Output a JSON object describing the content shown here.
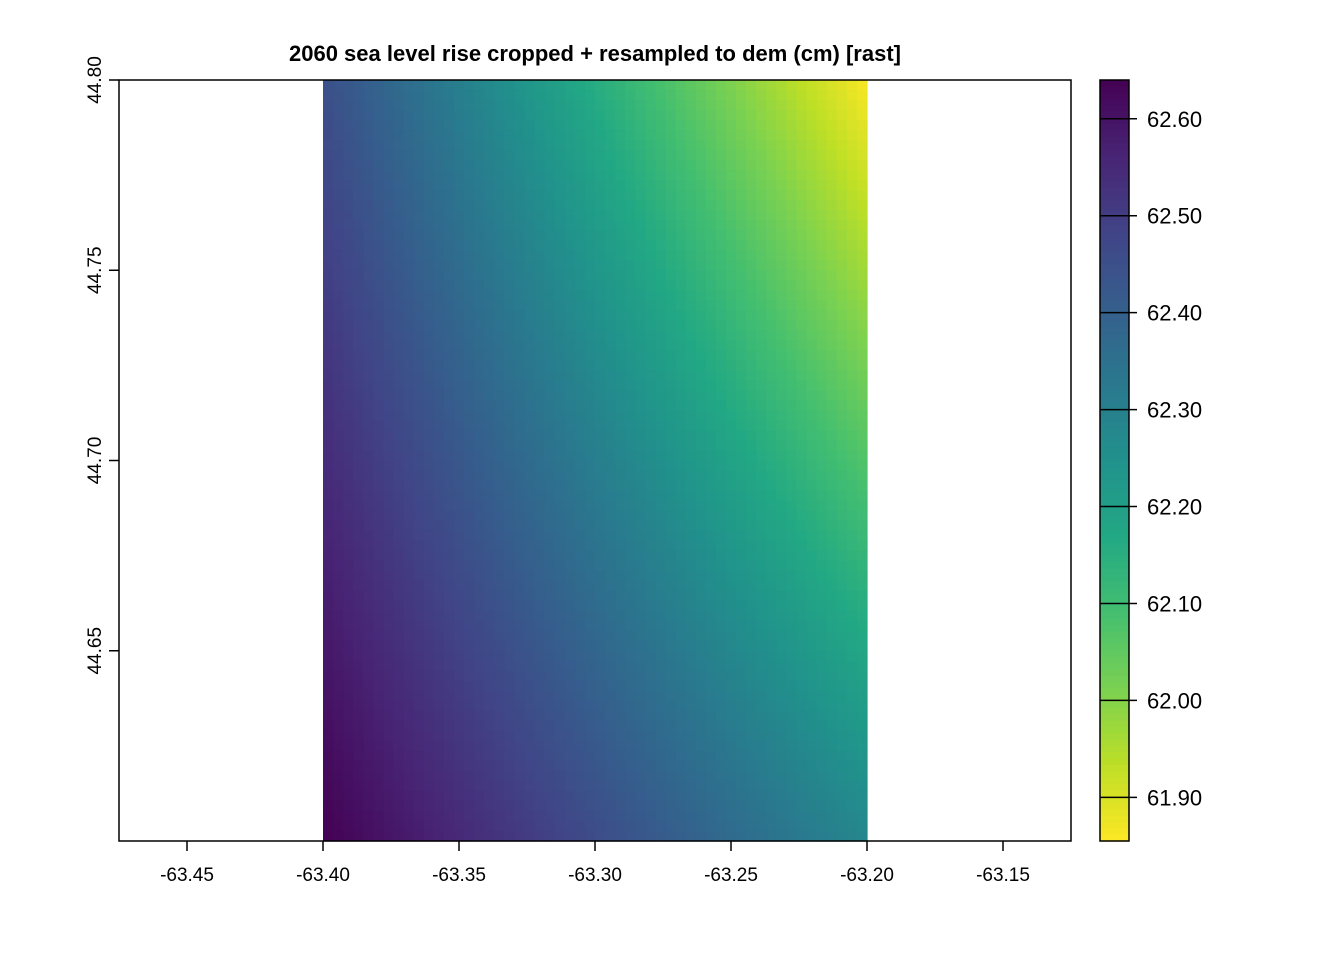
{
  "chart_data": {
    "type": "heatmap",
    "title": "2060 sea level rise cropped + resampled to dem (cm) [rast]",
    "xlabel": "",
    "ylabel": "",
    "xlim": [
      -63.475,
      -63.125
    ],
    "ylim": [
      44.6,
      44.8
    ],
    "x_ticks": [
      -63.45,
      -63.4,
      -63.35,
      -63.3,
      -63.25,
      -63.2,
      -63.15
    ],
    "x_tick_labels": [
      "-63.45",
      "-63.40",
      "-63.35",
      "-63.30",
      "-63.25",
      "-63.20",
      "-63.15"
    ],
    "y_ticks": [
      44.65,
      44.7,
      44.75,
      44.8
    ],
    "y_tick_labels": [
      "44.65",
      "44.70",
      "44.75",
      "44.80"
    ],
    "raster_extent": {
      "xmin": -63.4,
      "xmax": -63.2,
      "ymin": 44.6,
      "ymax": 44.8
    },
    "corner_values": {
      "bottom_left": 62.64,
      "top_left": 62.45,
      "bottom_right": 62.28,
      "top_right": 61.86
    },
    "grid": false,
    "colorscale": "viridis",
    "colorscale_reversed": true,
    "legend": {
      "placement": "right",
      "min": 61.855,
      "max": 62.64,
      "ticks": [
        62.6,
        62.5,
        62.4,
        62.3,
        62.2,
        62.1,
        62.0,
        61.9
      ],
      "tick_labels": [
        "62.60",
        "62.50",
        "62.40",
        "62.30",
        "62.20",
        "62.10",
        "62.00",
        "61.90"
      ]
    }
  }
}
